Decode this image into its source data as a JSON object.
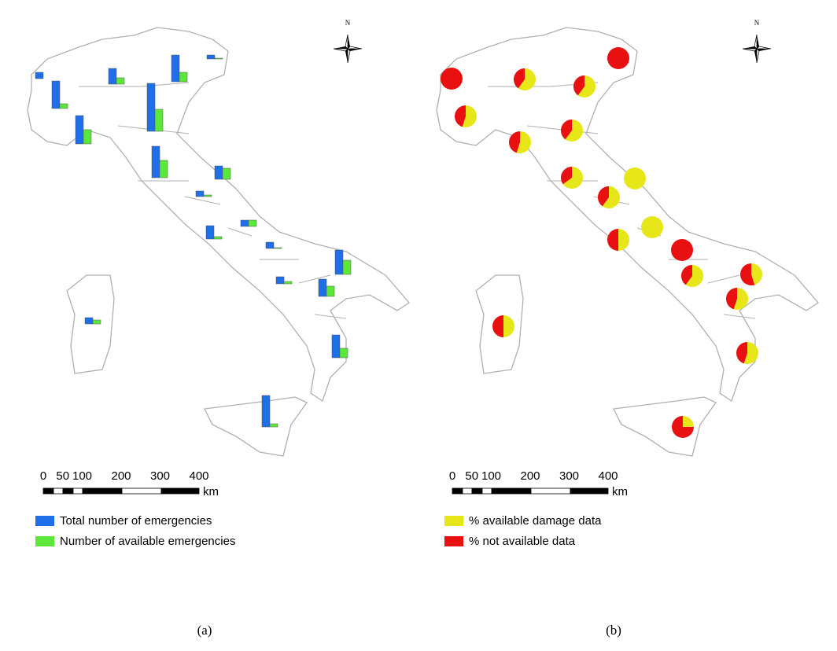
{
  "panel_a": {
    "bars": [
      {
        "total": 8,
        "available": 0
      },
      {
        "total": 35,
        "available": 6
      },
      {
        "total": 20,
        "available": 8
      },
      {
        "total": 34,
        "available": 12
      },
      {
        "total": 5,
        "available": 1
      },
      {
        "total": 36,
        "available": 18
      },
      {
        "total": 61,
        "available": 28
      },
      {
        "total": 40,
        "available": 22
      },
      {
        "total": 17,
        "available": 14
      },
      {
        "total": 7,
        "available": 2
      },
      {
        "total": 17,
        "available": 3
      },
      {
        "total": 8,
        "available": 8
      },
      {
        "total": 8,
        "available": 1
      },
      {
        "total": 31,
        "available": 18
      },
      {
        "total": 9,
        "available": 3
      },
      {
        "total": 22,
        "available": 13
      },
      {
        "total": 29,
        "available": 12
      },
      {
        "total": 40,
        "available": 4
      },
      {
        "total": 8,
        "available": 5
      }
    ],
    "legend": [
      "Total number of emergencies",
      "Number of available emergencies"
    ],
    "colors": [
      "#1e6fe8",
      "#5ce83a"
    ],
    "scale": {
      "ticks": [
        0,
        50,
        100,
        200,
        300,
        400
      ],
      "unit": "km"
    },
    "north": "N",
    "caption": "(a)"
  },
  "panel_b": {
    "pies": [
      {
        "available": 0,
        "not_available": 100
      },
      {
        "available": 60,
        "not_available": 40
      },
      {
        "available": 60,
        "not_available": 40
      },
      {
        "available": 0,
        "not_available": 100
      },
      {
        "available": 55,
        "not_available": 45
      },
      {
        "available": 55,
        "not_available": 45
      },
      {
        "available": 60,
        "not_available": 40
      },
      {
        "available": 65,
        "not_available": 35
      },
      {
        "available": 100,
        "not_available": 0
      },
      {
        "available": 60,
        "not_available": 40
      },
      {
        "available": 100,
        "not_available": 0
      },
      {
        "available": 50,
        "not_available": 50
      },
      {
        "available": 0,
        "not_available": 100
      },
      {
        "available": 60,
        "not_available": 40
      },
      {
        "available": 45,
        "not_available": 55
      },
      {
        "available": 55,
        "not_available": 45
      },
      {
        "available": 55,
        "not_available": 45
      },
      {
        "available": 50,
        "not_available": 50
      },
      {
        "available": 25,
        "not_available": 75
      }
    ],
    "legend": [
      "% available damage data",
      "% not available data"
    ],
    "colors": [
      "#e6e619",
      "#e81010"
    ],
    "scale": {
      "ticks": [
        0,
        50,
        100,
        200,
        300,
        400
      ],
      "unit": "km"
    },
    "north": "N",
    "caption": "(b)"
  }
}
